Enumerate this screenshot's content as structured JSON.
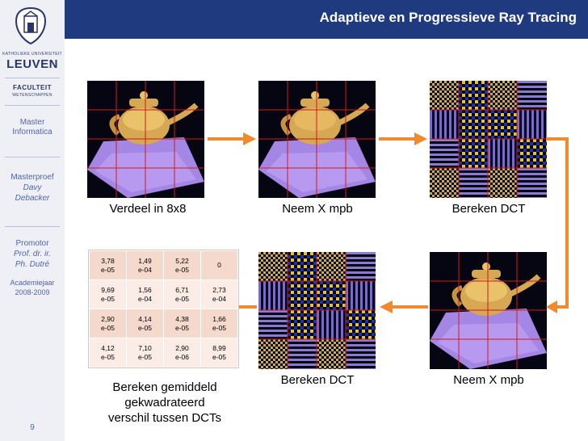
{
  "header": {
    "title": "Adaptieve en Progressieve Ray Tracing"
  },
  "sidebar": {
    "university_line": "KATHOLIEKE UNIVERSITEIT",
    "university_name": "LEUVEN",
    "faculty": "FACULTEIT",
    "faculty_sub": "WETENSCHAPPEN",
    "program_1": "Master",
    "program_2": "Informatica",
    "thesis_label": "Masterproef",
    "author_1": "Davy",
    "author_2": "Debacker",
    "promotor_label": "Promotor",
    "promotor_1": "Prof. dr. ir.",
    "promotor_2": "Ph. Dutré",
    "year_label": "Academiejaar",
    "year_value": "2008-2009",
    "page_number": "9"
  },
  "captions": {
    "top_left": "Verdeel in 8x8",
    "top_middle": "Neem X mpb",
    "top_right": "Bereken DCT",
    "bottom_middle": "Bereken DCT",
    "bottom_right": "Neem X mpb",
    "table_line_1": "Bereken gemiddeld",
    "table_line_2": "gekwadrateerd",
    "table_line_3": "verschil tussen DCTs"
  },
  "table": {
    "rows": [
      [
        [
          "3,78",
          "e-05"
        ],
        [
          "1,49",
          "e-04"
        ],
        [
          "5,22",
          "e-05"
        ],
        [
          "0",
          ""
        ]
      ],
      [
        [
          "9,69",
          "e-05"
        ],
        [
          "1,56",
          "e-04"
        ],
        [
          "6,71",
          "e-05"
        ],
        [
          "2,73",
          "e-04"
        ]
      ],
      [
        [
          "2,90",
          "e-05"
        ],
        [
          "4,14",
          "e-05"
        ],
        [
          "4,38",
          "e-05"
        ],
        [
          "1,66",
          "e-05"
        ]
      ],
      [
        [
          "4,12",
          "e-05"
        ],
        [
          "7,10",
          "e-05"
        ],
        [
          "2,90",
          "e-06"
        ],
        [
          "8,99",
          "e-05"
        ]
      ]
    ]
  },
  "colors": {
    "header_bg": "#1f3a7e",
    "arrow": "#f08a2c",
    "grid_red": "#d31a1a",
    "sidebar_text": "#5264a8",
    "table_row_dark": "#f6d9cd",
    "table_row_light": "#fbece6"
  },
  "icons": {
    "seal": "university-seal-icon",
    "arrow": "arrow-right-icon"
  }
}
